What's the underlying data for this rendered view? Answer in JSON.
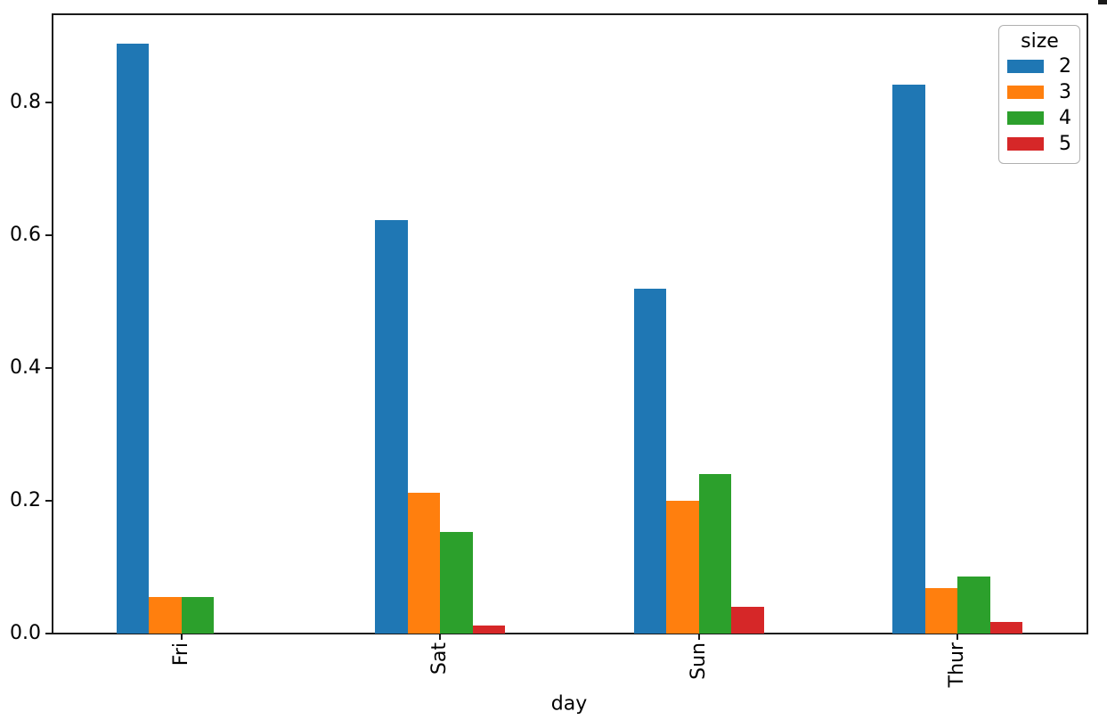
{
  "figure": {
    "background": "#ffffff",
    "spine_color": "#1a1a1a"
  },
  "chart_data": {
    "type": "bar",
    "title": "",
    "xlabel": "day",
    "ylabel": "",
    "categories": [
      "Fri",
      "Sat",
      "Sun",
      "Thur"
    ],
    "series": [
      {
        "name": "2",
        "color": "#1f77b4",
        "values": [
          0.8889,
          0.6235,
          0.52,
          0.8276
        ]
      },
      {
        "name": "3",
        "color": "#ff7f0e",
        "values": [
          0.0556,
          0.2118,
          0.2,
          0.069
        ]
      },
      {
        "name": "4",
        "color": "#2ca02c",
        "values": [
          0.0556,
          0.1529,
          0.24,
          0.0862
        ]
      },
      {
        "name": "5",
        "color": "#d62728",
        "values": [
          0.0,
          0.0118,
          0.04,
          0.0172
        ]
      }
    ],
    "legend": {
      "title": "size",
      "position": "upper-right"
    },
    "axes": {
      "ylim": [
        0,
        0.9333
      ],
      "yticks": [
        "0.0",
        "0.2",
        "0.4",
        "0.6",
        "0.8"
      ],
      "xtick_rotation": 90,
      "grid": false
    }
  }
}
